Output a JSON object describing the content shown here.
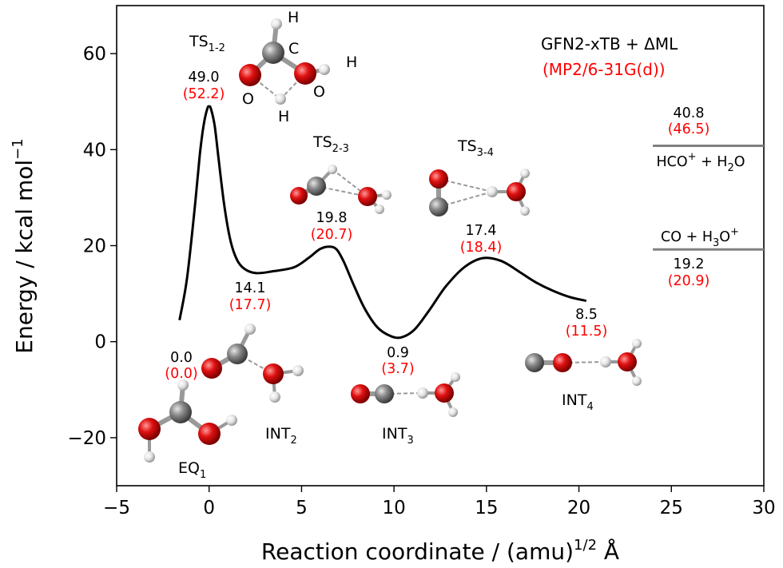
{
  "chart_data": {
    "type": "line",
    "title": "",
    "xlabel": "Reaction coordinate / (amu)",
    "xlabel_sup": "1/2",
    "xlabel_unit": " Å",
    "ylabel": "Energy / kcal mol",
    "ylabel_sup": "−1",
    "xlim": [
      -5,
      30
    ],
    "ylim": [
      -30,
      70
    ],
    "xticks": [
      -5,
      0,
      5,
      10,
      15,
      20,
      25,
      30
    ],
    "yticks": [
      -20,
      0,
      20,
      40,
      60
    ],
    "xtick_labels": [
      "−5",
      "0",
      "5",
      "10",
      "15",
      "20",
      "25",
      "30"
    ],
    "ytick_labels": [
      "−20",
      "0",
      "20",
      "40",
      "60"
    ],
    "grid": false,
    "legend": {
      "line1": "GFN2-xTB + ΔML",
      "line2": "(MP2/6-31G(d))",
      "line1_color": "#000000",
      "line2_color": "#ff0000"
    },
    "series": [
      {
        "color": "#000000",
        "x": [
          -1.6,
          -1.2,
          -0.8,
          -0.5,
          -0.3,
          -0.1,
          0.0,
          0.1,
          0.3,
          0.5,
          0.8,
          1.1,
          1.4,
          1.8,
          2.5,
          3.5,
          4.6,
          5.4,
          6.0,
          6.5,
          6.9,
          7.3,
          7.8,
          8.4,
          9.1,
          9.8,
          10.4,
          11.1,
          11.9,
          12.8,
          13.8,
          14.8,
          15.8,
          16.8,
          17.7,
          18.6,
          19.5,
          20.4
        ],
        "y": [
          4.5,
          13.0,
          27.0,
          39.0,
          45.0,
          48.5,
          49.0,
          48.5,
          45.0,
          38.5,
          29.0,
          22.0,
          18.0,
          15.5,
          14.3,
          14.7,
          15.5,
          17.5,
          19.3,
          19.8,
          19.2,
          16.5,
          12.0,
          7.0,
          3.0,
          1.2,
          0.9,
          2.5,
          6.5,
          11.5,
          15.5,
          17.4,
          16.8,
          14.5,
          12.3,
          10.6,
          9.3,
          8.5
        ]
      }
    ],
    "reference_lines": [
      {
        "x": [
          24,
          30
        ],
        "y": 40.8,
        "color": "#808080"
      },
      {
        "x": [
          24,
          30
        ],
        "y": 19.2,
        "color": "#808080"
      }
    ],
    "annotations": [
      {
        "id": "eq1",
        "name": "EQ",
        "sub": "1",
        "value": "0.0",
        "ref_value": "(0.0)"
      },
      {
        "id": "ts12",
        "name": "TS",
        "sub": "1-2",
        "value": "49.0",
        "ref_value": "(52.2)"
      },
      {
        "id": "int2",
        "name": "INT",
        "sub": "2",
        "value": "14.1",
        "ref_value": "(17.7)"
      },
      {
        "id": "ts23",
        "name": "TS",
        "sub": "2-3",
        "value": "19.8",
        "ref_value": "(20.7)"
      },
      {
        "id": "int3",
        "name": "INT",
        "sub": "3",
        "value": "0.9",
        "ref_value": "(3.7)"
      },
      {
        "id": "ts34",
        "name": "TS",
        "sub": "3-4",
        "value": "17.4",
        "ref_value": "(18.4)"
      },
      {
        "id": "int4",
        "name": "INT",
        "sub": "4",
        "value": "8.5",
        "ref_value": "(11.5)"
      }
    ],
    "products": [
      {
        "id": "hco",
        "label_html": "HCO<tspan dy='-8' font-size='13'>+</tspan><tspan dy='8'> + H</tspan><tspan dy='6' font-size='13'>2</tspan><tspan dy='-6'>O</tspan>",
        "value": "40.8",
        "ref_value": "(46.5)"
      },
      {
        "id": "co",
        "label_html": "CO + H<tspan dy='6' font-size='13'>3</tspan><tspan dy='-6'>O</tspan><tspan dy='-8' font-size='13'>+</tspan>",
        "value": "19.2",
        "ref_value": "(20.9)"
      }
    ],
    "atom_labels": [
      "H",
      "C",
      "H",
      "O",
      "O",
      "H"
    ]
  },
  "colors": {
    "oxygen": "#e01010",
    "carbon": "#808080",
    "hydrogen": "#e6e6e6",
    "reference": "#ff0000"
  }
}
